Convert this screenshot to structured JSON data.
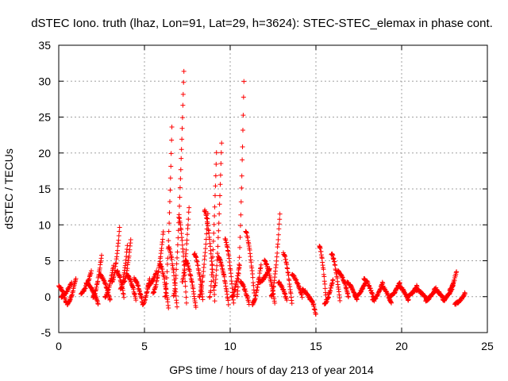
{
  "chart_data": {
    "type": "scatter",
    "title": "dSTEC Iono. truth (lhaz, Lon=91, Lat=29, h=3624): STEC-STEC_elemax in phase cont.",
    "xlabel": "GPS time / hours of day 213 of year 2014",
    "ylabel": "dSTEC  / TECUs",
    "xlim": [
      0,
      25
    ],
    "ylim": [
      -5,
      35
    ],
    "xticks": [
      0,
      5,
      10,
      15,
      20,
      25
    ],
    "yticks": [
      -5,
      0,
      5,
      10,
      15,
      20,
      25,
      30,
      35
    ],
    "grid": true,
    "marker": "+",
    "color": "#ff0000",
    "arcs": [
      {
        "start": 0.0,
        "end": 0.45,
        "from": 1.5,
        "to": -1.0
      },
      {
        "start": 0.15,
        "end": 0.75,
        "from": 0.0,
        "to": 2.0
      },
      {
        "start": 0.5,
        "end": 1.0,
        "from": -1.0,
        "to": 2.5
      },
      {
        "start": 1.3,
        "end": 1.9,
        "from": 0.5,
        "to": 3.5
      },
      {
        "start": 1.6,
        "end": 2.3,
        "from": 2.0,
        "to": -1.0
      },
      {
        "start": 2.0,
        "end": 2.5,
        "from": 0.0,
        "to": 5.7
      },
      {
        "start": 2.4,
        "end": 3.0,
        "from": 3.0,
        "to": -0.5
      },
      {
        "start": 2.7,
        "end": 3.2,
        "from": 0.0,
        "to": 4.5
      },
      {
        "start": 3.1,
        "end": 3.55,
        "from": 2.0,
        "to": 9.5
      },
      {
        "start": 3.4,
        "end": 3.8,
        "from": 3.5,
        "to": 0.0
      },
      {
        "start": 3.6,
        "end": 4.0,
        "from": 1.0,
        "to": 7.0
      },
      {
        "start": 3.8,
        "end": 4.2,
        "from": 2.0,
        "to": 8.0
      },
      {
        "start": 4.0,
        "end": 4.5,
        "from": 3.0,
        "to": -0.5
      },
      {
        "start": 4.4,
        "end": 4.9,
        "from": 2.5,
        "to": -1.0
      },
      {
        "start": 4.9,
        "end": 5.3,
        "from": -1.0,
        "to": 2.5
      },
      {
        "start": 5.2,
        "end": 5.7,
        "from": 1.5,
        "to": 3.5
      },
      {
        "start": 5.5,
        "end": 6.1,
        "from": 0.5,
        "to": 9.0
      },
      {
        "start": 5.9,
        "end": 6.4,
        "from": 4.5,
        "to": -1.5
      },
      {
        "start": 6.2,
        "end": 6.6,
        "from": 0.0,
        "to": 23.5
      },
      {
        "start": 6.4,
        "end": 6.9,
        "from": 7.0,
        "to": -1.5
      },
      {
        "start": 6.7,
        "end": 7.3,
        "from": 0.0,
        "to": 31.5
      },
      {
        "start": 7.0,
        "end": 7.45,
        "from": 11.0,
        "to": -1.0
      },
      {
        "start": 7.2,
        "end": 7.6,
        "from": 2.0,
        "to": 12.5
      },
      {
        "start": 7.4,
        "end": 8.0,
        "from": 5.0,
        "to": -1.5
      },
      {
        "start": 7.9,
        "end": 8.4,
        "from": 6.0,
        "to": -0.5
      },
      {
        "start": 8.2,
        "end": 8.7,
        "from": 0.0,
        "to": 11.5
      },
      {
        "start": 8.5,
        "end": 9.1,
        "from": 12.0,
        "to": -0.5
      },
      {
        "start": 8.8,
        "end": 9.2,
        "from": 0.0,
        "to": 20.0
      },
      {
        "start": 9.1,
        "end": 9.5,
        "from": 1.5,
        "to": 21.5
      },
      {
        "start": 9.3,
        "end": 9.9,
        "from": 5.5,
        "to": -1.0
      },
      {
        "start": 9.7,
        "end": 10.2,
        "from": 8.0,
        "to": -1.0
      },
      {
        "start": 10.1,
        "end": 10.55,
        "from": 0.0,
        "to": 4.5
      },
      {
        "start": 10.4,
        "end": 10.8,
        "from": 0.0,
        "to": 30.0
      },
      {
        "start": 10.6,
        "end": 11.1,
        "from": 2.0,
        "to": -1.0
      },
      {
        "start": 10.9,
        "end": 11.4,
        "from": 9.0,
        "to": 0.5
      },
      {
        "start": 11.3,
        "end": 11.8,
        "from": -1.0,
        "to": 4.5
      },
      {
        "start": 11.7,
        "end": 12.3,
        "from": 2.0,
        "to": 4.0
      },
      {
        "start": 12.0,
        "end": 12.6,
        "from": 5.0,
        "to": -1.0
      },
      {
        "start": 12.4,
        "end": 12.9,
        "from": 0.0,
        "to": 11.5
      },
      {
        "start": 12.8,
        "end": 13.3,
        "from": 2.0,
        "to": -0.5
      },
      {
        "start": 13.1,
        "end": 13.6,
        "from": 6.0,
        "to": -1.0
      },
      {
        "start": 13.6,
        "end": 14.2,
        "from": 3.0,
        "to": 0.0
      },
      {
        "start": 14.2,
        "end": 14.7,
        "from": 1.0,
        "to": -0.5
      },
      {
        "start": 14.6,
        "end": 15.0,
        "from": 0.0,
        "to": -2.5
      },
      {
        "start": 15.2,
        "end": 15.6,
        "from": 7.0,
        "to": -0.5
      },
      {
        "start": 15.5,
        "end": 16.0,
        "from": -1.0,
        "to": 2.5
      },
      {
        "start": 15.9,
        "end": 16.4,
        "from": 6.0,
        "to": -0.5
      },
      {
        "start": 16.3,
        "end": 16.9,
        "from": 3.5,
        "to": 0.0
      },
      {
        "start": 16.8,
        "end": 17.4,
        "from": 2.0,
        "to": -0.5
      },
      {
        "start": 17.3,
        "end": 17.9,
        "from": 0.0,
        "to": 2.0
      },
      {
        "start": 17.8,
        "end": 18.4,
        "from": 2.5,
        "to": -0.5
      },
      {
        "start": 18.3,
        "end": 18.9,
        "from": -0.5,
        "to": 2.0
      },
      {
        "start": 18.8,
        "end": 19.4,
        "from": 1.5,
        "to": -1.0
      },
      {
        "start": 19.3,
        "end": 19.9,
        "from": 0.0,
        "to": 2.0
      },
      {
        "start": 19.8,
        "end": 20.4,
        "from": 1.5,
        "to": -0.5
      },
      {
        "start": 20.3,
        "end": 20.9,
        "from": 0.0,
        "to": 1.5
      },
      {
        "start": 20.8,
        "end": 21.5,
        "from": 1.0,
        "to": -0.5
      },
      {
        "start": 21.4,
        "end": 22.0,
        "from": -0.5,
        "to": 1.2
      },
      {
        "start": 21.9,
        "end": 22.5,
        "from": 1.0,
        "to": -0.5
      },
      {
        "start": 22.4,
        "end": 23.0,
        "from": -0.5,
        "to": 1.5
      },
      {
        "start": 22.8,
        "end": 23.2,
        "from": 1.0,
        "to": 3.5
      },
      {
        "start": 23.1,
        "end": 23.7,
        "from": -1.0,
        "to": 0.5
      }
    ]
  }
}
